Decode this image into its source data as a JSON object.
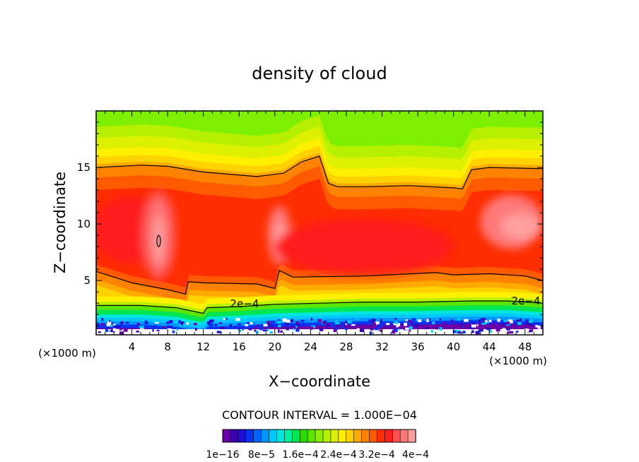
{
  "chart_data": {
    "type": "heatmap",
    "title": "density of cloud",
    "xlabel": "X−coordinate",
    "ylabel": "Z−coordinate",
    "x_unit_label_left": "(×1000 m)",
    "x_unit_label_right": "(×1000 m)",
    "xlim": [
      0,
      50
    ],
    "ylim": [
      0.2,
      20
    ],
    "x_ticks": [
      4,
      8,
      12,
      16,
      20,
      24,
      28,
      32,
      36,
      40,
      44,
      48
    ],
    "y_ticks": [
      5,
      10,
      15
    ],
    "contour_interval_text": "CONTOUR INTERVAL = 1.000E−04",
    "contour_label": "2e−4",
    "contour_label_right": "2e−4",
    "colorbar": {
      "tick_labels": [
        "1e−16",
        "8e−5",
        "1.6e−4",
        "2.4e−4",
        "3.2e−4",
        "4e−4"
      ],
      "colors": [
        "#6a00a8",
        "#3c00b4",
        "#1e0fd2",
        "#0a32f0",
        "#0064ff",
        "#0096ff",
        "#00c8ff",
        "#00e6dc",
        "#00f0a0",
        "#00e650",
        "#28dc00",
        "#5ae600",
        "#8cf000",
        "#b4f000",
        "#dcf000",
        "#fff000",
        "#ffd200",
        "#ffaa00",
        "#ff8200",
        "#ff5a00",
        "#ff2d00",
        "#ff1e1e",
        "#ff5050",
        "#ff7878",
        "#ff9e9e"
      ]
    },
    "density_levels_e4": [
      0,
      0.8,
      1.6,
      2.4,
      3.2,
      4.0
    ],
    "ceiling_contour_z": {
      "x": [
        0,
        5,
        8,
        12,
        18,
        21,
        23,
        25,
        26,
        27,
        30,
        35,
        40,
        41,
        42,
        44,
        50
      ],
      "z": [
        15.0,
        15.2,
        15.1,
        14.6,
        14.2,
        14.5,
        15.5,
        16.0,
        13.6,
        13.3,
        13.3,
        13.4,
        13.2,
        13.1,
        14.8,
        15.0,
        14.9
      ]
    },
    "base_contour_z": {
      "x": [
        0,
        4,
        8,
        10,
        10.3,
        12,
        18,
        20,
        20.5,
        22,
        30,
        38,
        40,
        44,
        48,
        50
      ],
      "z": [
        5.8,
        4.8,
        4.2,
        3.8,
        4.9,
        4.8,
        4.7,
        4.3,
        5.9,
        5.3,
        5.4,
        5.7,
        5.5,
        5.6,
        5.4,
        5.0
      ]
    },
    "low_contour_z": {
      "x": [
        0,
        5,
        9,
        12,
        12.4,
        16,
        20,
        25,
        30,
        36,
        42,
        46,
        50
      ],
      "z": [
        2.8,
        2.8,
        2.6,
        2.1,
        2.6,
        2.7,
        2.9,
        3.0,
        3.1,
        3.1,
        3.2,
        3.2,
        3.0
      ]
    }
  }
}
